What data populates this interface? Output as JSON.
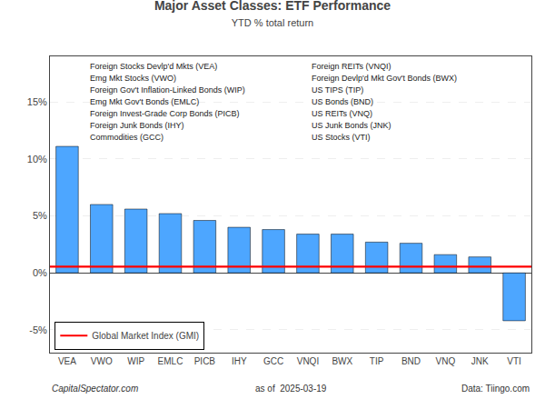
{
  "chart_data": {
    "type": "bar",
    "title": "Major Asset Classes: ETF Performance",
    "subtitle": "YTD % total return",
    "categories": [
      "VEA",
      "VWO",
      "WIP",
      "EMLC",
      "PICB",
      "IHY",
      "GCC",
      "VNQI",
      "BWX",
      "TIP",
      "BND",
      "VNQ",
      "JNK",
      "VTI"
    ],
    "values": [
      11.1,
      6.0,
      5.6,
      5.2,
      4.6,
      4.0,
      3.8,
      3.4,
      3.4,
      2.7,
      2.6,
      1.6,
      1.4,
      -4.2
    ],
    "color": "#4da6ff",
    "reference_line": {
      "name": "Global Market Index (GMI)",
      "value": 0.55,
      "color": "#ff0000"
    },
    "ylim": [
      -7,
      19
    ],
    "yticks": [
      {
        "value": -5,
        "label": "-5%"
      },
      {
        "value": 0,
        "label": "0%"
      },
      {
        "value": 5,
        "label": "5%"
      },
      {
        "value": 10,
        "label": "10%"
      },
      {
        "value": 15,
        "label": "15%"
      }
    ],
    "grid": true,
    "legend": "lower left",
    "annotations": [
      "Foreign Stocks Devlp'd Mkts (VEA)",
      "Emg Mkt Stocks (VWO)",
      "Foreign Gov't Inflation-Linked Bonds (WIP)",
      "Emg Mkt Gov't Bonds (EMLC)",
      "Foreign Invest-Grade Corp Bonds (PICB)",
      "Foreign Junk Bonds (IHY)",
      "Commodities (GCC)",
      "Foreign REITs (VNQI)",
      "Foreign Devlp'd Mkt Gov't Bonds (BWX)",
      "US TIPS (TIP)",
      "US Bonds (BND)",
      "US REITs (VNQ)",
      "US Junk Bonds (JNK)",
      "US Stocks (VTI)"
    ],
    "footer": [
      "CapitalSpectator.com",
      "as of  2025-03-19",
      "Data: Tiingo.com"
    ]
  }
}
